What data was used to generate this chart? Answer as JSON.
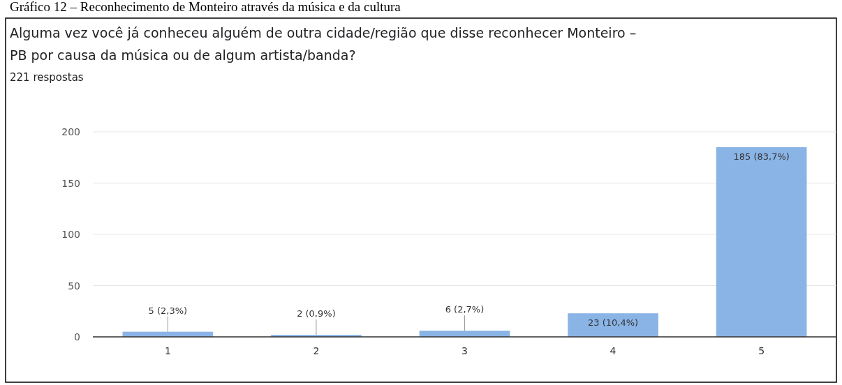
{
  "chart_data": {
    "type": "bar",
    "title": "Gráfico 12 – Reconhecimento de Monteiro através da música e da cultura",
    "subtitle": "Alguma vez você já conheceu alguém de outra cidade/região que disse reconhecer Monteiro – PB por causa da música ou de algum artista/banda?",
    "annotations": [
      "221 respostas"
    ],
    "categories": [
      "1",
      "2",
      "3",
      "4",
      "5"
    ],
    "values": [
      5,
      2,
      6,
      23,
      185
    ],
    "value_labels": [
      "5 (2,3%)",
      "2 (0,9%)",
      "6 (2,7%)",
      "23 (10,4%)",
      "185 (83,7%)"
    ],
    "color": "#8ab4e6",
    "ylim": [
      0,
      200
    ],
    "yticks": [
      0,
      50,
      100,
      150,
      200
    ],
    "grid": "y"
  }
}
